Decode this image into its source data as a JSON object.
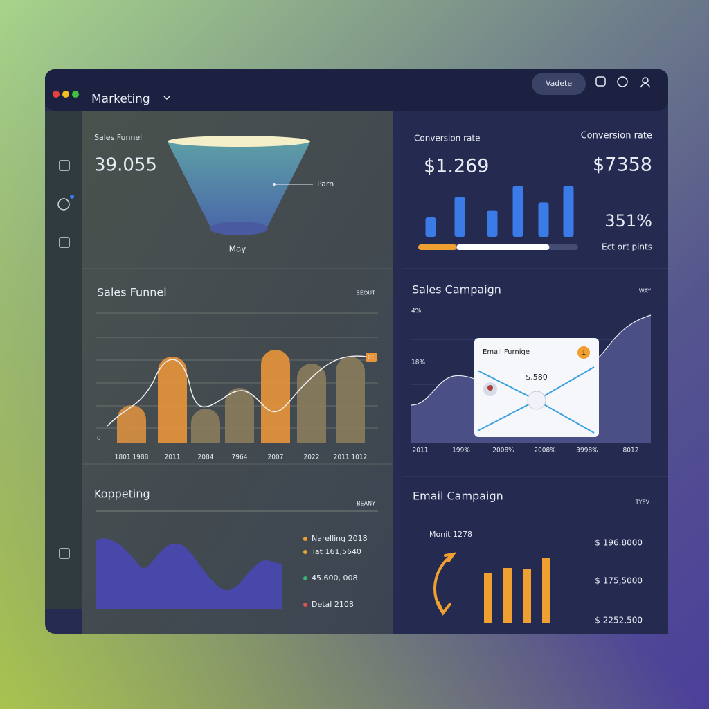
{
  "window": {
    "title": "Marketing",
    "button": "Vadete"
  },
  "panels": {
    "funnel": {
      "label": "Sales Funnel",
      "value": "39.055",
      "annotation": "Parn",
      "caption": "May"
    },
    "conversion": {
      "label_left": "Conversion rate",
      "value_left": "$1.269",
      "label_right": "Conversion rate",
      "value_right": "$7358",
      "percent": "351%",
      "note": "Ect ort pints",
      "bars": [
        35,
        72,
        48,
        92,
        62,
        92
      ],
      "bar_color": "#3b7be8",
      "progress": [
        24,
        58
      ],
      "progress_colors": [
        "#f0a030",
        "#ffffff"
      ]
    },
    "sales_funnel": {
      "title": "Sales Funnel",
      "tag": "BEOUT",
      "zero": "0",
      "badge": "01",
      "categories": [
        "1801 1988",
        "2011",
        "2084",
        "7964",
        "2007",
        "2022",
        "2011 1012"
      ],
      "values": [
        55,
        125,
        50,
        80,
        135,
        115,
        125
      ],
      "colors": [
        "#d99040",
        "#e8953a",
        "#8a7c5c",
        "#8a7c5c",
        "#e8953a",
        "#8a7c5c",
        "#8a7c5c"
      ]
    },
    "sales_campaign": {
      "title": "Sales Campaign",
      "tag": "WAY",
      "y_labels": [
        "4%",
        "18%"
      ],
      "x_labels": [
        "2011",
        "199%",
        "2008%",
        "2008%",
        "3998%",
        "8012"
      ],
      "card": {
        "title": "Email Furnige",
        "badge": "1",
        "value": "$.580"
      }
    },
    "kopperting": {
      "title": "Koppeting",
      "tag": "BEANY",
      "legend": [
        {
          "text": "Narelling 2018",
          "color": "#f0a030"
        },
        {
          "text": "Tat 161,5640",
          "color": "#f0a030"
        },
        {
          "text": "45.600, 008",
          "color": "#3cb371"
        },
        {
          "text": "Detal 2108",
          "color": "#e05050"
        }
      ]
    },
    "email": {
      "title": "Email Campaign",
      "tag": "TYEV",
      "label": "Monit 1278",
      "bars": [
        72,
        80,
        78,
        95
      ],
      "bar_color": "#f0a030",
      "values": [
        "$ 196,8000",
        "$ 175,5000",
        "$ 2252,500"
      ]
    }
  }
}
